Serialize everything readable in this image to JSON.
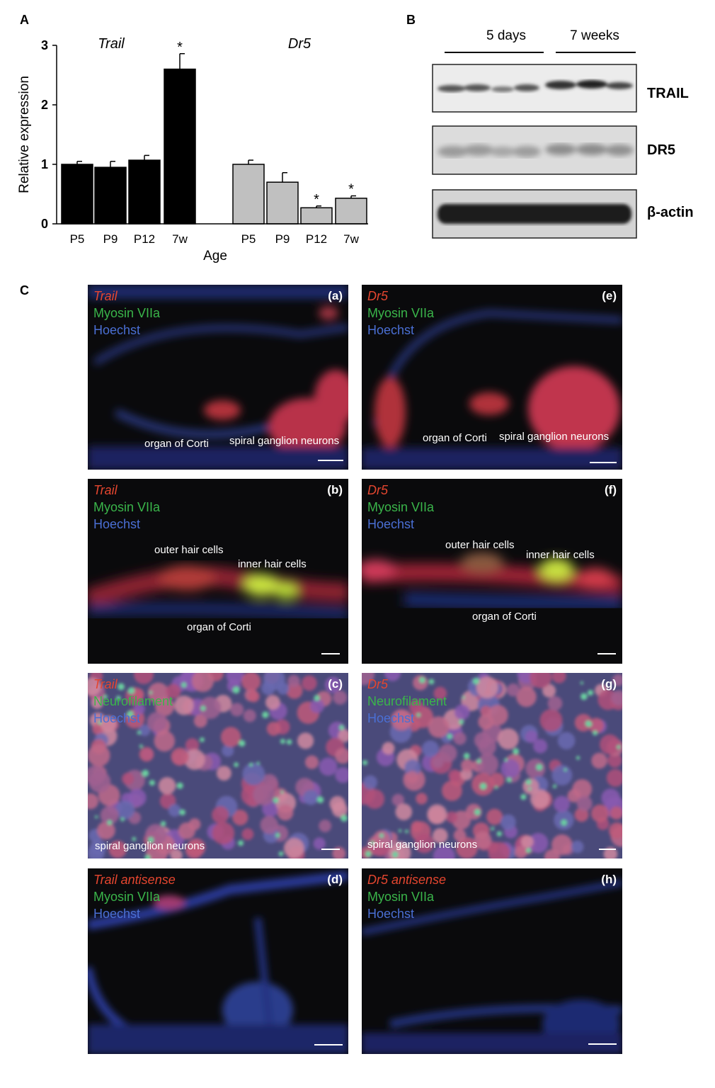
{
  "panels": {
    "a": "A",
    "b": "B",
    "c": "C"
  },
  "chart_data": {
    "type": "bar",
    "ylabel": "Relative expression",
    "xlabel": "Age",
    "ylim": [
      0,
      3
    ],
    "yticks": [
      "0",
      "1",
      "2",
      "3"
    ],
    "groups": [
      {
        "name": "Trail",
        "color": "#000000",
        "categories": [
          "P5",
          "P9",
          "P12",
          "7w"
        ],
        "values": [
          1.0,
          0.95,
          1.07,
          2.6
        ],
        "errors": [
          0.05,
          0.1,
          0.08,
          0.26
        ],
        "significance": [
          "",
          "",
          "",
          "*"
        ]
      },
      {
        "name": "Dr5",
        "color": "#c0c0c0",
        "categories": [
          "P5",
          "P9",
          "P12",
          "7w"
        ],
        "values": [
          1.0,
          0.7,
          0.27,
          0.43
        ],
        "errors": [
          0.07,
          0.16,
          0.03,
          0.04
        ],
        "significance": [
          "",
          "",
          "*",
          "*"
        ]
      }
    ]
  },
  "blot": {
    "groups": [
      "5 days",
      "7 weeks"
    ],
    "rows": [
      "TRAIL",
      "DR5",
      "β-actin"
    ]
  },
  "micro": [
    {
      "tag": "(a)",
      "l1": "Trail",
      "l2": "Myosin VIIa",
      "l3": "Hoechst",
      "ann": [
        "organ of Corti",
        "spiral ganglion neurons"
      ]
    },
    {
      "tag": "(e)",
      "l1": "Dr5",
      "l2": "Myosin VIIa",
      "l3": "Hoechst",
      "ann": [
        "organ of Corti",
        "spiral ganglion neurons"
      ]
    },
    {
      "tag": "(b)",
      "l1": "Trail",
      "l2": "Myosin VIIa",
      "l3": "Hoechst",
      "ann": [
        "outer hair cells",
        "inner hair cells",
        "organ of Corti"
      ]
    },
    {
      "tag": "(f)",
      "l1": "Dr5",
      "l2": "Myosin VIIa",
      "l3": "Hoechst",
      "ann": [
        "outer hair cells",
        "inner hair cells",
        "organ of Corti"
      ]
    },
    {
      "tag": "(c)",
      "l1": "Trail",
      "l2": "Neurofilament",
      "l3": "Hoechst",
      "ann": [
        "spiral ganglion neurons"
      ]
    },
    {
      "tag": "(g)",
      "l1": "Dr5",
      "l2": "Neurofilament",
      "l3": "Hoechst",
      "ann": [
        "spiral ganglion neurons"
      ]
    },
    {
      "tag": "(d)",
      "l1": "Trail antisense",
      "l2": "Myosin VIIa",
      "l3": "Hoechst",
      "ann": []
    },
    {
      "tag": "(h)",
      "l1": "Dr5 antisense",
      "l2": "Myosin VIIa",
      "l3": "Hoechst",
      "ann": []
    }
  ]
}
